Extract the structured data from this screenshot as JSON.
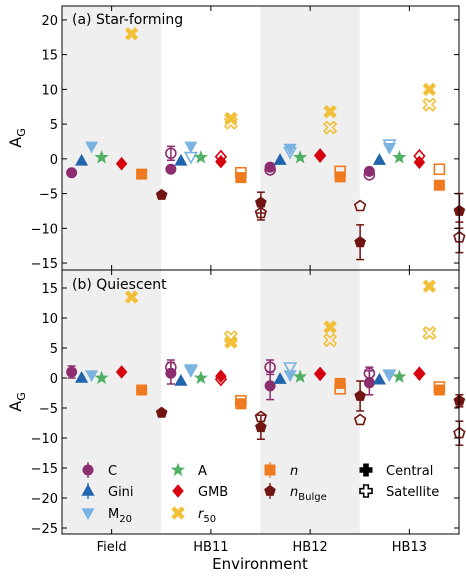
{
  "chart_data": {
    "type": "scatter",
    "xlabel": "Environment",
    "ylabel": "A_G",
    "categories": [
      "Field",
      "HB11",
      "HB12",
      "HB13"
    ],
    "colors": {
      "C": "#8b2d6e",
      "Gini": "#2265ad",
      "M20": "#7bb3e0",
      "A": "#4fb065",
      "GMB": "#d7000f",
      "r50": "#f2c038",
      "n": "#ef7a1f",
      "nBulge": "#701512",
      "shade": "#efefef"
    },
    "legend": {
      "placement": "lower panel, bottom",
      "entries": [
        {
          "key": "C",
          "label": "C",
          "marker": "circle"
        },
        {
          "key": "Gini",
          "label": "Gini",
          "marker": "triangle-up"
        },
        {
          "key": "M20",
          "label": "M",
          "sub": "20",
          "marker": "triangle-down"
        },
        {
          "key": "A",
          "label": "A",
          "marker": "star"
        },
        {
          "key": "GMB",
          "label": "GMB",
          "marker": "diamond"
        },
        {
          "key": "r50",
          "label": "r",
          "sub": "50",
          "marker": "x"
        },
        {
          "key": "n",
          "label": "n",
          "marker": "square"
        },
        {
          "key": "nBulge",
          "label": "n",
          "sub": "Bulge",
          "marker": "pentagon"
        },
        {
          "key": "central",
          "label": "Central",
          "marker": "plus-filled"
        },
        {
          "key": "satellite",
          "label": "Satellite",
          "marker": "plus-open"
        }
      ]
    },
    "panels": [
      {
        "title": "(a) Star-forming",
        "ylim": [
          -16,
          22
        ],
        "yticks": [
          -15,
          -10,
          -5,
          0,
          5,
          10,
          15,
          20
        ],
        "points": [
          {
            "env": "Field",
            "metric": "C",
            "filled": true,
            "y": -2.0,
            "err": 0
          },
          {
            "env": "Field",
            "metric": "Gini",
            "filled": true,
            "y": -0.3,
            "err": 0
          },
          {
            "env": "Field",
            "metric": "M20",
            "filled": true,
            "y": 1.8,
            "err": 0
          },
          {
            "env": "Field",
            "metric": "A",
            "filled": true,
            "y": 0.2,
            "err": 0
          },
          {
            "env": "Field",
            "metric": "GMB",
            "filled": true,
            "y": -0.7,
            "err": 0
          },
          {
            "env": "Field",
            "metric": "r50",
            "filled": true,
            "y": 18.0,
            "err": 0
          },
          {
            "env": "Field",
            "metric": "n",
            "filled": true,
            "y": -2.2,
            "err": 0
          },
          {
            "env": "Field",
            "metric": "nBulge",
            "filled": true,
            "y": -5.2,
            "err": 0
          },
          {
            "env": "HB11",
            "metric": "C",
            "filled": false,
            "y": 0.8,
            "err": 1.0
          },
          {
            "env": "HB11",
            "metric": "C",
            "filled": true,
            "y": -1.5,
            "err": 0
          },
          {
            "env": "HB11",
            "metric": "Gini",
            "filled": true,
            "y": -0.3,
            "err": 0
          },
          {
            "env": "HB11",
            "metric": "M20",
            "filled": false,
            "y": 0.3,
            "err": 0
          },
          {
            "env": "HB11",
            "metric": "M20",
            "filled": true,
            "y": 1.8,
            "err": 0
          },
          {
            "env": "HB11",
            "metric": "A",
            "filled": true,
            "y": 0.2,
            "err": 0
          },
          {
            "env": "HB11",
            "metric": "r50",
            "filled": false,
            "y": 5.2,
            "err": 0
          },
          {
            "env": "HB11",
            "metric": "r50",
            "filled": true,
            "y": 5.8,
            "err": 0
          },
          {
            "env": "HB11",
            "metric": "n",
            "filled": false,
            "y": -2.0,
            "err": 0
          },
          {
            "env": "HB11",
            "metric": "n",
            "filled": true,
            "y": -2.7,
            "err": 0
          },
          {
            "env": "HB11",
            "metric": "GMB",
            "filled": false,
            "y": 0.3,
            "err": 0
          },
          {
            "env": "HB11",
            "metric": "GMB",
            "filled": true,
            "y": -0.4,
            "err": 0
          },
          {
            "env": "HB11",
            "metric": "nBulge",
            "filled": true,
            "y": -6.3,
            "err": 1.5
          },
          {
            "env": "HB11",
            "metric": "nBulge",
            "filled": false,
            "y": -7.8,
            "err": 1.0
          },
          {
            "env": "HB12",
            "metric": "C",
            "filled": false,
            "y": -1.6,
            "err": 0
          },
          {
            "env": "HB12",
            "metric": "C",
            "filled": true,
            "y": -1.2,
            "err": 0
          },
          {
            "env": "HB12",
            "metric": "Gini",
            "filled": true,
            "y": -0.2,
            "err": 0
          },
          {
            "env": "HB12",
            "metric": "M20",
            "filled": false,
            "y": 1.0,
            "err": 0
          },
          {
            "env": "HB12",
            "metric": "M20",
            "filled": true,
            "y": 1.5,
            "err": 0
          },
          {
            "env": "HB12",
            "metric": "A",
            "filled": true,
            "y": 0.2,
            "err": 0
          },
          {
            "env": "HB12",
            "metric": "r50",
            "filled": false,
            "y": 4.5,
            "err": 0
          },
          {
            "env": "HB12",
            "metric": "r50",
            "filled": true,
            "y": 6.8,
            "err": 0
          },
          {
            "env": "HB12",
            "metric": "n",
            "filled": false,
            "y": -1.8,
            "err": 0
          },
          {
            "env": "HB12",
            "metric": "n",
            "filled": true,
            "y": -2.6,
            "err": 0
          },
          {
            "env": "HB12",
            "metric": "GMB",
            "filled": false,
            "y": 0.5,
            "err": 0
          },
          {
            "env": "HB12",
            "metric": "GMB",
            "filled": true,
            "y": 0.4,
            "err": 0
          },
          {
            "env": "HB12",
            "metric": "nBulge",
            "filled": false,
            "y": -6.8,
            "err": 0
          },
          {
            "env": "HB12",
            "metric": "nBulge",
            "filled": true,
            "y": -12.0,
            "err": 2.5
          },
          {
            "env": "HB13",
            "metric": "C",
            "filled": false,
            "y": -2.3,
            "err": 0
          },
          {
            "env": "HB13",
            "metric": "C",
            "filled": true,
            "y": -1.8,
            "err": 0
          },
          {
            "env": "HB13",
            "metric": "Gini",
            "filled": true,
            "y": -0.2,
            "err": 0
          },
          {
            "env": "HB13",
            "metric": "M20",
            "filled": false,
            "y": 2.1,
            "err": 0
          },
          {
            "env": "HB13",
            "metric": "M20",
            "filled": true,
            "y": 1.6,
            "err": 0
          },
          {
            "env": "HB13",
            "metric": "A",
            "filled": true,
            "y": 0.2,
            "err": 0
          },
          {
            "env": "HB13",
            "metric": "r50",
            "filled": false,
            "y": 7.8,
            "err": 0
          },
          {
            "env": "HB13",
            "metric": "r50",
            "filled": true,
            "y": 10.0,
            "err": 0
          },
          {
            "env": "HB13",
            "metric": "n",
            "filled": false,
            "y": -1.5,
            "err": 0
          },
          {
            "env": "HB13",
            "metric": "n",
            "filled": true,
            "y": -3.8,
            "err": 0
          },
          {
            "env": "HB13",
            "metric": "GMB",
            "filled": false,
            "y": 0.4,
            "err": 0
          },
          {
            "env": "HB13",
            "metric": "GMB",
            "filled": true,
            "y": -0.5,
            "err": 0
          },
          {
            "env": "HB13",
            "metric": "nBulge",
            "filled": true,
            "y": -7.5,
            "err": 2.5
          },
          {
            "env": "HB13",
            "metric": "nBulge",
            "filled": false,
            "y": -11.3,
            "err": 2.2
          }
        ]
      },
      {
        "title": "(b) Quiescent",
        "ylim": [
          -26,
          18
        ],
        "yticks": [
          -25,
          -20,
          -15,
          -10,
          -5,
          0,
          5,
          10,
          15
        ],
        "points": [
          {
            "env": "Field",
            "metric": "C",
            "filled": true,
            "y": 1.0,
            "err": 1.0
          },
          {
            "env": "Field",
            "metric": "Gini",
            "filled": true,
            "y": 0.0,
            "err": 0
          },
          {
            "env": "Field",
            "metric": "M20",
            "filled": true,
            "y": 0.5,
            "err": 0
          },
          {
            "env": "Field",
            "metric": "A",
            "filled": true,
            "y": 0.0,
            "err": 0
          },
          {
            "env": "Field",
            "metric": "GMB",
            "filled": true,
            "y": 1.0,
            "err": 0
          },
          {
            "env": "Field",
            "metric": "r50",
            "filled": true,
            "y": 13.5,
            "err": 0
          },
          {
            "env": "Field",
            "metric": "n",
            "filled": true,
            "y": -2.0,
            "err": 0
          },
          {
            "env": "Field",
            "metric": "nBulge",
            "filled": true,
            "y": -5.8,
            "err": 0
          },
          {
            "env": "HB11",
            "metric": "C",
            "filled": false,
            "y": 1.8,
            "err": 1.2
          },
          {
            "env": "HB11",
            "metric": "C",
            "filled": true,
            "y": 0.8,
            "err": 1.8
          },
          {
            "env": "HB11",
            "metric": "Gini",
            "filled": true,
            "y": -0.5,
            "err": 0
          },
          {
            "env": "HB11",
            "metric": "M20",
            "filled": false,
            "y": 1.3,
            "err": 0
          },
          {
            "env": "HB11",
            "metric": "M20",
            "filled": true,
            "y": 1.5,
            "err": 0
          },
          {
            "env": "HB11",
            "metric": "A",
            "filled": true,
            "y": 0.0,
            "err": 0
          },
          {
            "env": "HB11",
            "metric": "r50",
            "filled": false,
            "y": 6.8,
            "err": 0
          },
          {
            "env": "HB11",
            "metric": "r50",
            "filled": true,
            "y": 6.0,
            "err": 0
          },
          {
            "env": "HB11",
            "metric": "n",
            "filled": false,
            "y": -3.8,
            "err": 0
          },
          {
            "env": "HB11",
            "metric": "n",
            "filled": true,
            "y": -4.3,
            "err": 0
          },
          {
            "env": "HB11",
            "metric": "GMB",
            "filled": false,
            "y": -0.2,
            "err": 0
          },
          {
            "env": "HB11",
            "metric": "GMB",
            "filled": true,
            "y": 0.3,
            "err": 0
          },
          {
            "env": "HB11",
            "metric": "nBulge",
            "filled": false,
            "y": -6.5,
            "err": 0
          },
          {
            "env": "HB11",
            "metric": "nBulge",
            "filled": true,
            "y": -8.2,
            "err": 2.0
          },
          {
            "env": "HB12",
            "metric": "C",
            "filled": false,
            "y": 1.8,
            "err": 1.2
          },
          {
            "env": "HB12",
            "metric": "C",
            "filled": true,
            "y": -1.3,
            "err": 2.3
          },
          {
            "env": "HB12",
            "metric": "Gini",
            "filled": true,
            "y": -0.2,
            "err": 0
          },
          {
            "env": "HB12",
            "metric": "M20",
            "filled": false,
            "y": 1.8,
            "err": 0
          },
          {
            "env": "HB12",
            "metric": "M20",
            "filled": true,
            "y": 0.5,
            "err": 0
          },
          {
            "env": "HB12",
            "metric": "A",
            "filled": true,
            "y": 0.2,
            "err": 0
          },
          {
            "env": "HB12",
            "metric": "r50",
            "filled": false,
            "y": 6.3,
            "err": 0
          },
          {
            "env": "HB12",
            "metric": "r50",
            "filled": true,
            "y": 8.5,
            "err": 0
          },
          {
            "env": "HB12",
            "metric": "n",
            "filled": false,
            "y": -1.8,
            "err": 0
          },
          {
            "env": "HB12",
            "metric": "n",
            "filled": true,
            "y": -0.9,
            "err": 0
          },
          {
            "env": "HB12",
            "metric": "GMB",
            "filled": false,
            "y": 0.7,
            "err": 0
          },
          {
            "env": "HB12",
            "metric": "GMB",
            "filled": true,
            "y": 0.6,
            "err": 0
          },
          {
            "env": "HB12",
            "metric": "nBulge",
            "filled": false,
            "y": -7.0,
            "err": 0
          },
          {
            "env": "HB12",
            "metric": "nBulge",
            "filled": true,
            "y": -3.0,
            "err": 2.5
          },
          {
            "env": "HB13",
            "metric": "C",
            "filled": false,
            "y": 0.8,
            "err": 1.0
          },
          {
            "env": "HB13",
            "metric": "C",
            "filled": true,
            "y": -0.8,
            "err": 2.0
          },
          {
            "env": "HB13",
            "metric": "Gini",
            "filled": true,
            "y": -0.3,
            "err": 0
          },
          {
            "env": "HB13",
            "metric": "M20",
            "filled": false,
            "y": 0.6,
            "err": 0
          },
          {
            "env": "HB13",
            "metric": "M20",
            "filled": true,
            "y": 0.5,
            "err": 0
          },
          {
            "env": "HB13",
            "metric": "A",
            "filled": true,
            "y": 0.2,
            "err": 0
          },
          {
            "env": "HB13",
            "metric": "r50",
            "filled": false,
            "y": 7.5,
            "err": 0
          },
          {
            "env": "HB13",
            "metric": "r50",
            "filled": true,
            "y": 15.3,
            "err": 0
          },
          {
            "env": "HB13",
            "metric": "n",
            "filled": false,
            "y": -1.5,
            "err": 0
          },
          {
            "env": "HB13",
            "metric": "n",
            "filled": true,
            "y": -2.0,
            "err": 0
          },
          {
            "env": "HB13",
            "metric": "GMB",
            "filled": false,
            "y": 0.7,
            "err": 0
          },
          {
            "env": "HB13",
            "metric": "GMB",
            "filled": true,
            "y": 0.8,
            "err": 0
          },
          {
            "env": "HB13",
            "metric": "nBulge",
            "filled": true,
            "y": -3.8,
            "err": 1.0
          },
          {
            "env": "HB13",
            "metric": "nBulge",
            "filled": false,
            "y": -9.2,
            "err": 2.0
          }
        ]
      }
    ]
  }
}
